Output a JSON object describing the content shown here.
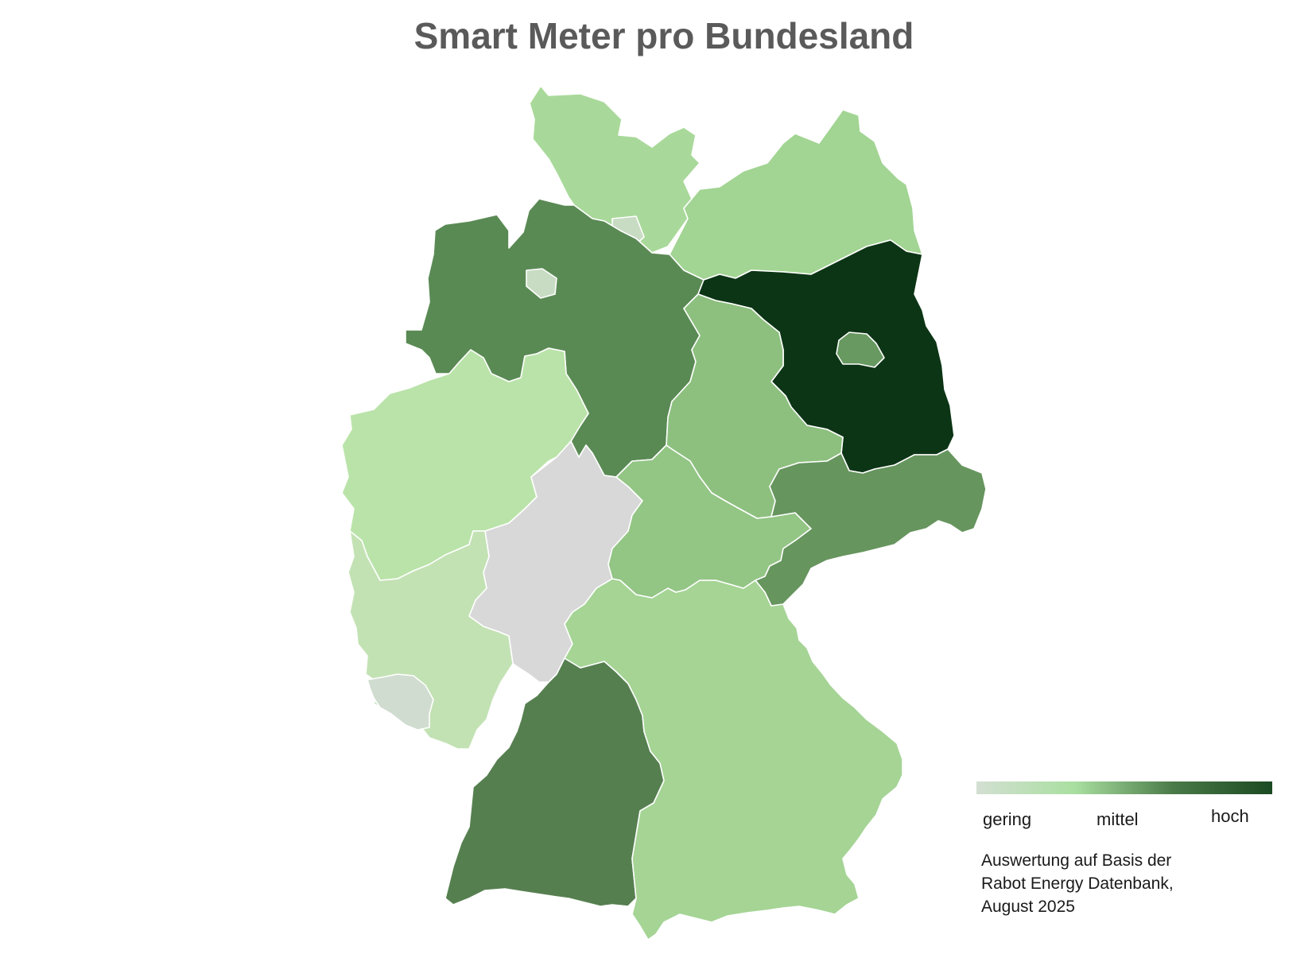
{
  "title": "Smart Meter pro Bundesland",
  "legend": {
    "low": "gering",
    "mid": "mittel",
    "high": "hoch",
    "gradient": [
      "#d3dfd2",
      "#a9dfa0",
      "#4a7a48",
      "#1b4a22"
    ]
  },
  "source_lines": [
    "Auswertung auf Basis der",
    "Rabot Energy Datenbank,",
    "August 2025"
  ],
  "map_data": {
    "type": "choropleth",
    "scale": "gering → hoch",
    "regions": [
      {
        "name": "Schleswig-Holstein",
        "color": "#a9d99a"
      },
      {
        "name": "Hamburg",
        "color": "#c8dcc3"
      },
      {
        "name": "Mecklenburg-Vorpommern",
        "color": "#a2d493"
      },
      {
        "name": "Niedersachsen",
        "color": "#5a8a54"
      },
      {
        "name": "Bremen",
        "color": "#c8dcc3"
      },
      {
        "name": "Brandenburg",
        "color": "#0c3515"
      },
      {
        "name": "Berlin",
        "color": "#679960"
      },
      {
        "name": "Sachsen-Anhalt",
        "color": "#8dc07f"
      },
      {
        "name": "Nordrhein-Westfalen",
        "color": "#bae3a9"
      },
      {
        "name": "Hessen",
        "color": "#d8d8d8"
      },
      {
        "name": "Thüringen",
        "color": "#93c585"
      },
      {
        "name": "Sachsen",
        "color": "#66955e"
      },
      {
        "name": "Rheinland-Pfalz",
        "color": "#c3e2b4"
      },
      {
        "name": "Saarland",
        "color": "#d0dccf"
      },
      {
        "name": "Baden-Württemberg",
        "color": "#567f50"
      },
      {
        "name": "Bayern",
        "color": "#a5d495"
      }
    ]
  }
}
